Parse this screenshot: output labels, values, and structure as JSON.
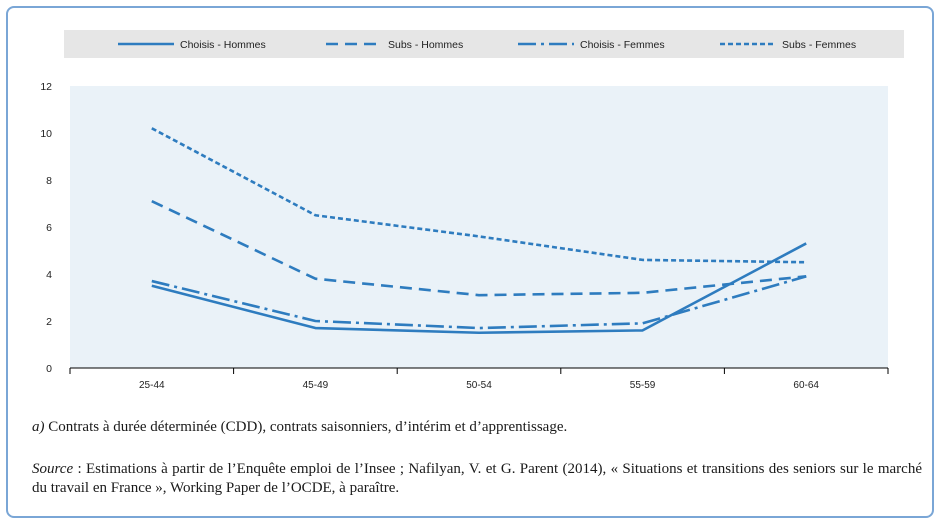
{
  "chart_data": {
    "type": "line",
    "categories": [
      "25-44",
      "45-49",
      "50-54",
      "55-59",
      "60-64"
    ],
    "ylim": [
      0,
      12
    ],
    "yticks": [
      0,
      2,
      4,
      6,
      8,
      10,
      12
    ],
    "grid": false,
    "legend_position": "top",
    "series": [
      {
        "name": "Choisis - Hommes",
        "values": [
          3.5,
          1.7,
          1.5,
          1.6,
          5.3
        ],
        "dash": "solid",
        "color": "#2e7cbf"
      },
      {
        "name": "Subs - Hommes",
        "values": [
          7.1,
          3.8,
          3.1,
          3.2,
          3.9
        ],
        "dash": "dashed",
        "color": "#2e7cbf"
      },
      {
        "name": "Choisis - Femmes",
        "values": [
          3.7,
          2.0,
          1.7,
          1.9,
          3.9
        ],
        "dash": "dashdot",
        "color": "#2e7cbf"
      },
      {
        "name": "Subs - Femmes",
        "values": [
          10.2,
          6.5,
          5.6,
          4.6,
          4.5
        ],
        "dash": "dotted",
        "color": "#2e7cbf"
      }
    ]
  },
  "notes": {
    "note_a_prefix": "a)",
    "note_a_text": " Contrats à durée déterminée (CDD), contrats saisonniers, d’intérim et d’apprentissage.",
    "source_prefix": "Source",
    "source_text": " : Estimations à partir de l’Enquête emploi de l’Insee ; Nafilyan, V. et G. Parent (2014), « Situations et transitions des seniors sur le marché du travail en France », Working Paper de l’OCDE, à paraître."
  }
}
